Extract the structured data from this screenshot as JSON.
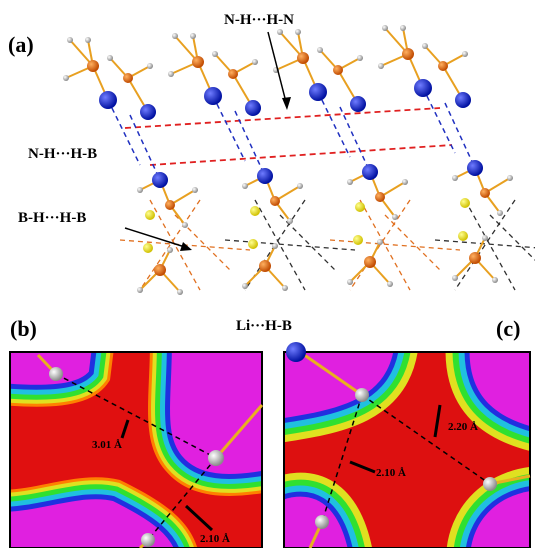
{
  "panel_a": {
    "label": "(a)",
    "annotations": [
      "N-H···H-N",
      "N-H···H-B",
      "B-H···H-B",
      "Li···H-B"
    ]
  },
  "panel_b": {
    "label": "(b)",
    "distances": [
      "3.01 Å",
      "2.10 Å"
    ]
  },
  "panel_c": {
    "label": "(c)",
    "distances": [
      "2.20 Å",
      "2.10 Å"
    ]
  }
}
